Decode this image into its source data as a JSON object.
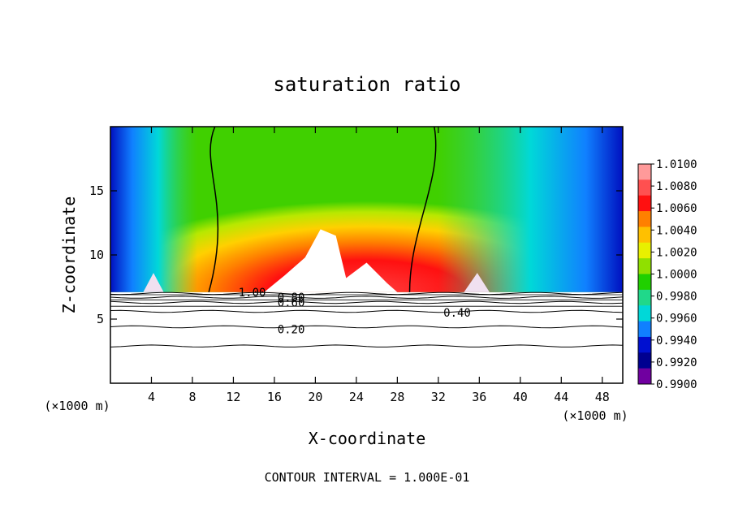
{
  "chart_data": {
    "type": "heatmap",
    "title": "saturation ratio",
    "xlabel": "X-coordinate",
    "ylabel": "Z-coordinate",
    "x_unit_note": "(×1000 m)",
    "x_unit_note_right": "(×1000 m)",
    "footer": "CONTOUR INTERVAL = 1.000E-01",
    "xlim": [
      0,
      50
    ],
    "ylim": [
      0,
      20
    ],
    "x_ticks": [
      4,
      8,
      12,
      16,
      20,
      24,
      28,
      32,
      36,
      40,
      44,
      48
    ],
    "y_ticks": [
      5,
      10,
      15
    ],
    "colorbar": {
      "levels": [
        "1.0100",
        "1.0080",
        "1.0060",
        "1.0040",
        "1.0020",
        "1.0000",
        "0.9980",
        "0.9960",
        "0.9940",
        "0.9920",
        "0.9900"
      ],
      "colors": [
        "#ff9a9a",
        "#ff5050",
        "#ff1010",
        "#ff8000",
        "#ffc000",
        "#e8f000",
        "#90e000",
        "#20d000",
        "#20d88a",
        "#00d8d8",
        "#1080ff",
        "#0010d0",
        "#000090",
        "#7000a0"
      ]
    },
    "contour_labels": [
      "1.00",
      "0.80",
      "0.60",
      "0.40",
      "0.20"
    ],
    "contour_lines": [
      {
        "level": 0.2,
        "z": 4.4
      },
      {
        "level": 0.4,
        "z": 5.6
      },
      {
        "level": 0.6,
        "z": 6.3
      },
      {
        "level": 0.8,
        "z": 6.7
      },
      {
        "level": 1.0,
        "z": 7.0
      }
    ],
    "extra_contour": {
      "z": 2.9
    },
    "saturation_boundary_x": {
      "left": [
        10.2,
        8.6,
        12.0,
        9.6
      ],
      "right": [
        31.6,
        32.5,
        29.2
      ]
    },
    "colorfield_z_range": [
      7.1,
      20
    ]
  }
}
